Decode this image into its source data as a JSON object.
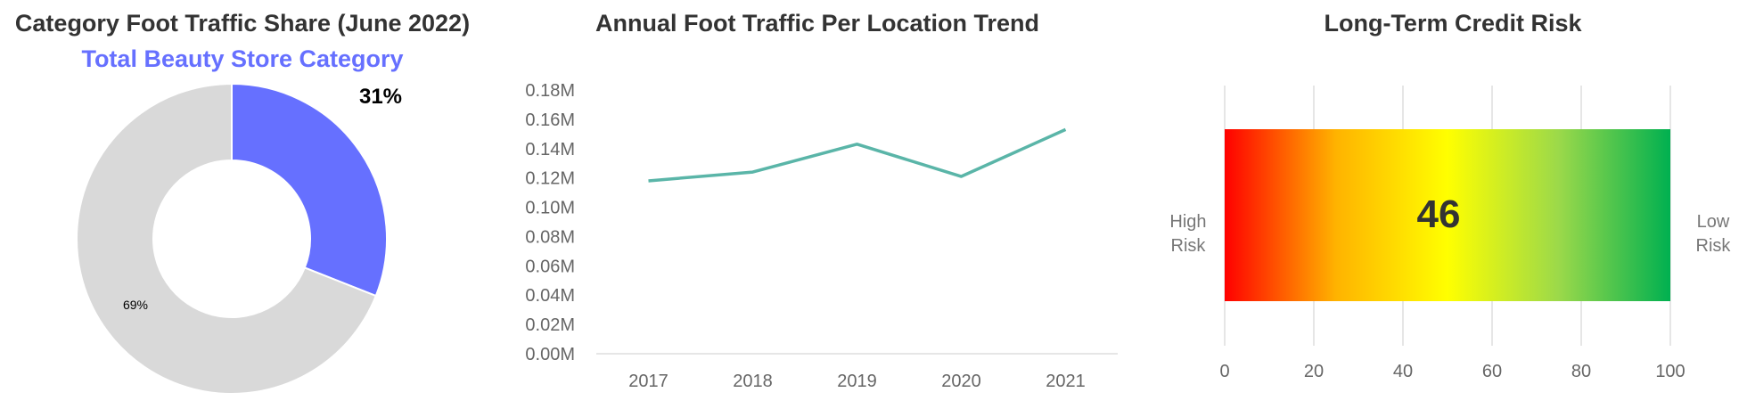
{
  "chart_data": [
    {
      "type": "pie",
      "title": "Category Foot Traffic Share (June 2022)",
      "subtitle": "Total Beauty Store Category",
      "donut": true,
      "slices": [
        {
          "label": "31%",
          "value": 31,
          "color": "#6670ff"
        },
        {
          "label": "69%",
          "value": 69,
          "color": "#d9d9d9"
        }
      ]
    },
    {
      "type": "line",
      "title": "Annual Foot Traffic Per Location Trend",
      "xlabel": "",
      "ylabel": "",
      "x": [
        "2017",
        "2018",
        "2019",
        "2020",
        "2021"
      ],
      "series": [
        {
          "values": [
            0.118,
            0.124,
            0.143,
            0.121,
            0.153
          ],
          "color": "#5ab5a8"
        }
      ],
      "ylim": [
        0,
        0.18
      ],
      "yticks": [
        "0.00M",
        "0.02M",
        "0.04M",
        "0.06M",
        "0.08M",
        "0.10M",
        "0.12M",
        "0.14M",
        "0.16M",
        "0.18M"
      ]
    },
    {
      "type": "bar",
      "title": "Long-Term Credit Risk",
      "value": 46,
      "value_label": "46",
      "xlim": [
        0,
        100
      ],
      "xticks": [
        "0",
        "20",
        "40",
        "60",
        "80",
        "100"
      ],
      "left_label": [
        "High",
        "Risk"
      ],
      "right_label": [
        "Low",
        "Risk"
      ],
      "gradient": [
        "#ff0000",
        "#ffb300",
        "#ffff00",
        "#9bd94a",
        "#00b050"
      ],
      "grid": true
    }
  ]
}
